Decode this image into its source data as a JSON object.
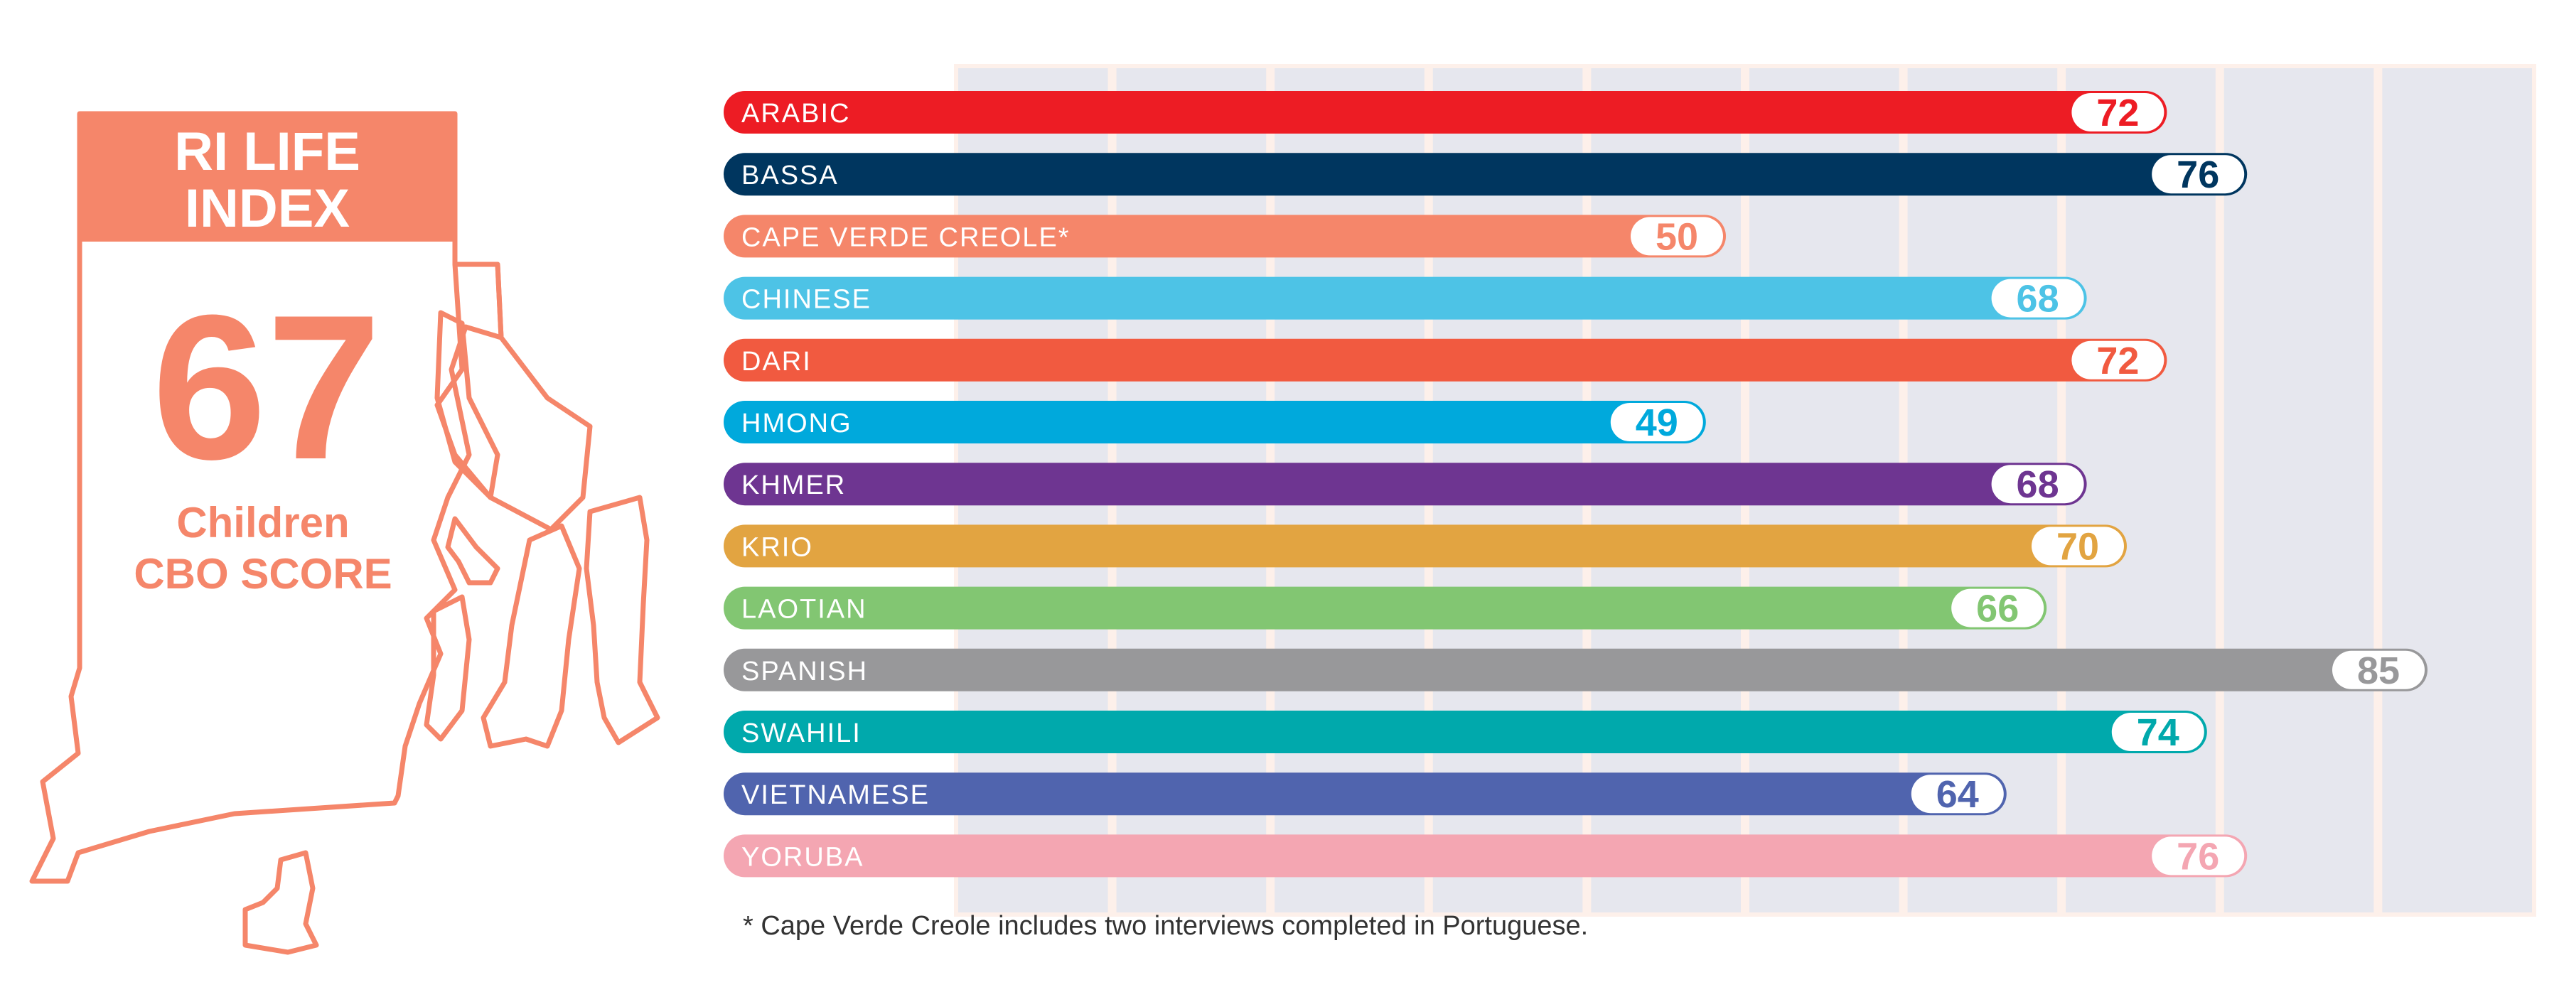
{
  "map": {
    "title_line1": "RI LIFE",
    "title_line2": "INDEX",
    "score": "67",
    "caption_line1": "Children",
    "caption_line2": "CBO SCORE",
    "outline_color": "#f5866a"
  },
  "footnote": "* Cape Verde Creole includes two interviews completed in Portuguese.",
  "chart_data": {
    "type": "bar",
    "orientation": "horizontal",
    "xlim": [
      0,
      100
    ],
    "grid": true,
    "categories": [
      "ARABIC",
      "BASSA",
      "CAPE VERDE CREOLE*",
      "CHINESE",
      "DARI",
      "HMONG",
      "KHMER",
      "KRIO",
      "LAOTIAN",
      "SPANISH",
      "SWAHILI",
      "VIETNAMESE",
      "YORUBA"
    ],
    "values": [
      72,
      76,
      50,
      68,
      72,
      49,
      68,
      70,
      66,
      85,
      74,
      64,
      76
    ],
    "colors": [
      "#ed1c24",
      "#00365f",
      "#f5866a",
      "#4dc3e6",
      "#f15a40",
      "#00a9dc",
      "#6e3591",
      "#e2a441",
      "#82c672",
      "#98989a",
      "#00a9ac",
      "#5064ae",
      "#f4a6b2"
    ]
  }
}
